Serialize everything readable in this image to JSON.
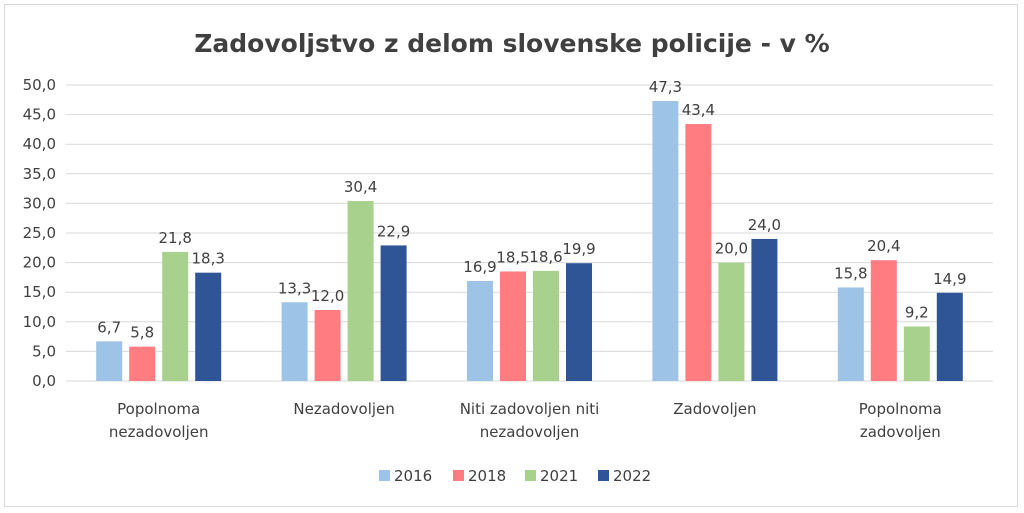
{
  "chart_data": {
    "type": "bar",
    "title": "Zadovoljstvo z delom slovenske policije - v %",
    "categories": [
      [
        "Popolnoma",
        "nezadovoljen"
      ],
      [
        "Nezadovoljen"
      ],
      [
        "Niti zadovoljen niti",
        "nezadovoljen"
      ],
      [
        "Zadovoljen"
      ],
      [
        "Popolnoma",
        "zadovoljen"
      ]
    ],
    "series": [
      {
        "name": "2016",
        "color": "#9dc3e6",
        "values": [
          6.7,
          13.3,
          16.9,
          47.3,
          15.8
        ]
      },
      {
        "name": "2018",
        "color": "#ff7c80",
        "values": [
          5.8,
          12.0,
          18.5,
          43.4,
          20.4
        ]
      },
      {
        "name": "2021",
        "color": "#a9d18e",
        "values": [
          21.8,
          30.4,
          18.6,
          20.0,
          9.2
        ]
      },
      {
        "name": "2022",
        "color": "#2f5597",
        "values": [
          18.3,
          22.9,
          19.9,
          24.0,
          14.9
        ]
      }
    ],
    "ylim": [
      0,
      50
    ],
    "yticks": [
      0,
      5,
      10,
      15,
      20,
      25,
      30,
      35,
      40,
      45,
      50
    ],
    "decimal_separator": ",",
    "grid": true,
    "legend": "bottom"
  }
}
